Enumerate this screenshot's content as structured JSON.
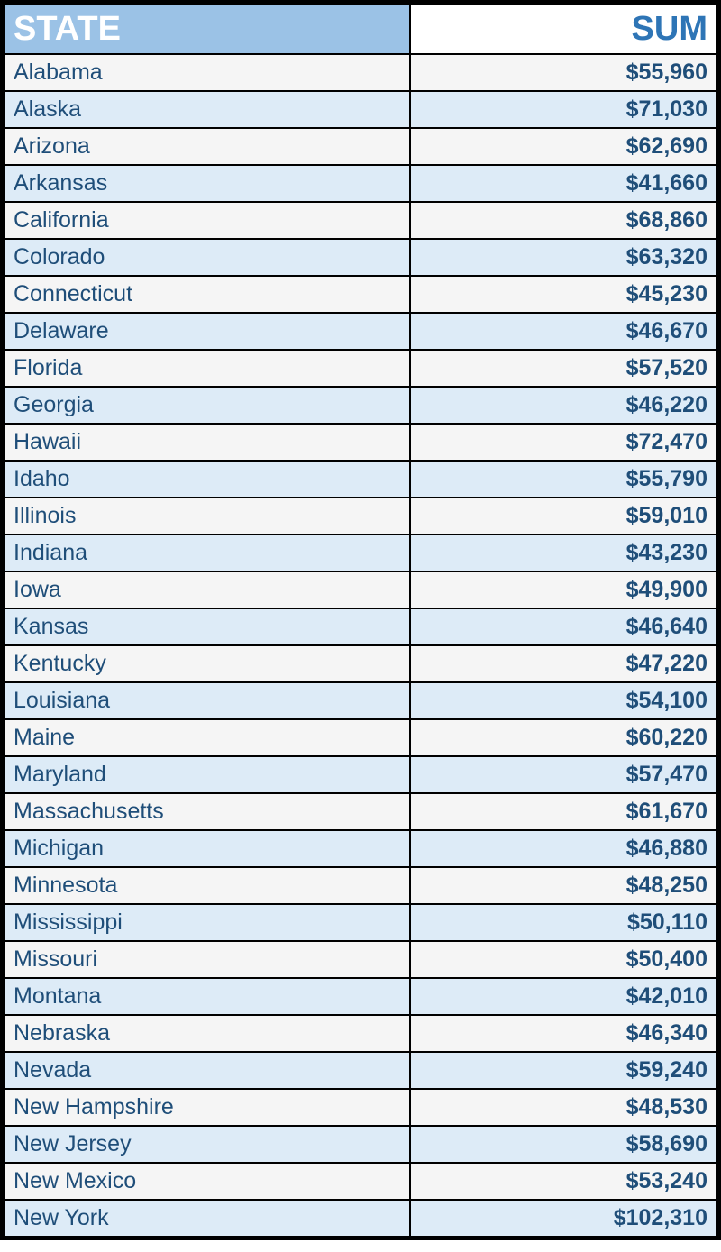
{
  "table": {
    "type": "table",
    "header_state_bg": "#9bc2e6",
    "header_state_fg": "#ffffff",
    "header_sum_bg": "#ffffff",
    "header_sum_fg": "#2e75b6",
    "row_odd_bg": "#f5f5f5",
    "row_even_bg": "#ddebf7",
    "cell_text_color": "#1f4e79",
    "border_color": "#000000",
    "header_fontsize": 38,
    "cell_fontsize": 25,
    "state_col_width_pct": 57,
    "sum_col_width_pct": 43,
    "columns": {
      "state": "STATE",
      "sum": "SUM"
    },
    "rows": [
      {
        "state": "Alabama",
        "sum": "$55,960"
      },
      {
        "state": "Alaska",
        "sum": "$71,030"
      },
      {
        "state": "Arizona",
        "sum": "$62,690"
      },
      {
        "state": "Arkansas",
        "sum": "$41,660"
      },
      {
        "state": "California",
        "sum": "$68,860"
      },
      {
        "state": "Colorado",
        "sum": "$63,320"
      },
      {
        "state": "Connecticut",
        "sum": "$45,230"
      },
      {
        "state": "Delaware",
        "sum": "$46,670"
      },
      {
        "state": "Florida",
        "sum": "$57,520"
      },
      {
        "state": "Georgia",
        "sum": "$46,220"
      },
      {
        "state": "Hawaii",
        "sum": "$72,470"
      },
      {
        "state": "Idaho",
        "sum": "$55,790"
      },
      {
        "state": "Illinois",
        "sum": "$59,010"
      },
      {
        "state": "Indiana",
        "sum": "$43,230"
      },
      {
        "state": "Iowa",
        "sum": "$49,900"
      },
      {
        "state": "Kansas",
        "sum": "$46,640"
      },
      {
        "state": "Kentucky",
        "sum": "$47,220"
      },
      {
        "state": "Louisiana",
        "sum": "$54,100"
      },
      {
        "state": "Maine",
        "sum": "$60,220"
      },
      {
        "state": "Maryland",
        "sum": "$57,470"
      },
      {
        "state": "Massachusetts",
        "sum": "$61,670"
      },
      {
        "state": "Michigan",
        "sum": "$46,880"
      },
      {
        "state": "Minnesota",
        "sum": "$48,250"
      },
      {
        "state": "Mississippi",
        "sum": "$50,110"
      },
      {
        "state": "Missouri",
        "sum": "$50,400"
      },
      {
        "state": "Montana",
        "sum": "$42,010"
      },
      {
        "state": "Nebraska",
        "sum": "$46,340"
      },
      {
        "state": "Nevada",
        "sum": "$59,240"
      },
      {
        "state": "New Hampshire",
        "sum": "$48,530"
      },
      {
        "state": "New Jersey",
        "sum": "$58,690"
      },
      {
        "state": "New Mexico",
        "sum": "$53,240"
      },
      {
        "state": "New York",
        "sum": "$102,310"
      }
    ]
  }
}
